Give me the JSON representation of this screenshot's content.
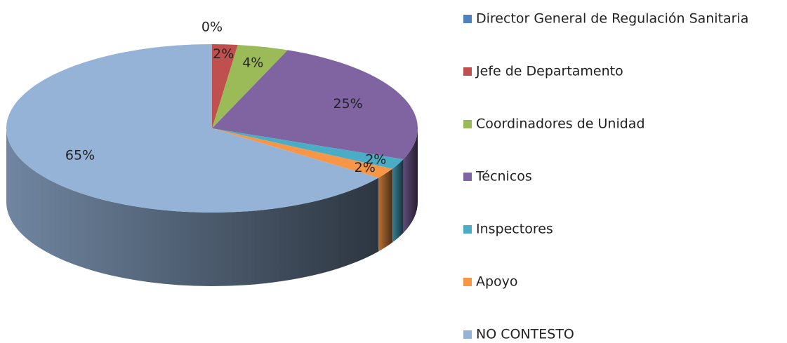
{
  "chart_data": {
    "type": "pie",
    "categories": [
      "Director General  de Regulación Sanitaria",
      "Jefe de Departamento",
      "Coordinadores de Unidad",
      "Técnicos",
      "Inspectores",
      "Apoyo",
      "NO CONTESTO"
    ],
    "values": [
      0,
      2,
      4,
      25,
      2,
      2,
      65
    ],
    "value_labels": [
      "0%",
      "2%",
      "4%",
      "25%",
      "2%",
      "2%",
      "65%"
    ],
    "colors": [
      "#4f81bd",
      "#c0504d",
      "#9bbb59",
      "#8064a2",
      "#4bacc6",
      "#f79646",
      "#95b3d7"
    ],
    "legend": "right"
  }
}
